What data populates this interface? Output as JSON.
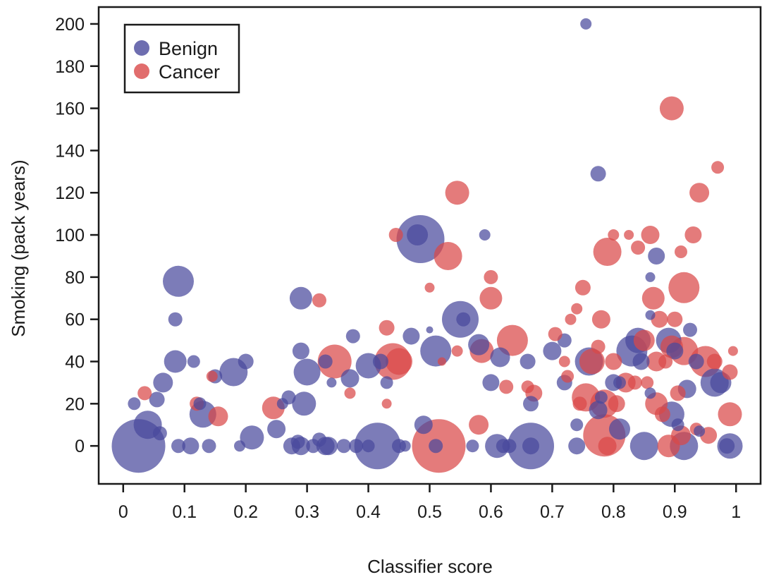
{
  "chart_data": {
    "type": "scatter",
    "title": "",
    "xlabel": "Classifier score",
    "ylabel": "Smoking (pack years)",
    "xlim": [
      -0.04,
      1.04
    ],
    "ylim": [
      -18,
      208
    ],
    "x_ticks": [
      0,
      0.1,
      0.2,
      0.3,
      0.4,
      0.5,
      0.6,
      0.7,
      0.8,
      0.9,
      1
    ],
    "y_ticks": [
      0,
      20,
      40,
      60,
      80,
      100,
      120,
      140,
      160,
      180,
      200
    ],
    "grid": false,
    "legend_position": "top-left",
    "series": [
      {
        "name": "Benign",
        "color": "#4a4a9c",
        "points": [
          {
            "x": 0.025,
            "y": 0,
            "r": 38
          },
          {
            "x": 0.04,
            "y": 10,
            "r": 20
          },
          {
            "x": 0.06,
            "y": 6,
            "r": 10
          },
          {
            "x": 0.055,
            "y": 22,
            "r": 11
          },
          {
            "x": 0.065,
            "y": 30,
            "r": 14
          },
          {
            "x": 0.018,
            "y": 20,
            "r": 9
          },
          {
            "x": 0.085,
            "y": 40,
            "r": 16
          },
          {
            "x": 0.09,
            "y": 78,
            "r": 22
          },
          {
            "x": 0.085,
            "y": 60,
            "r": 10
          },
          {
            "x": 0.09,
            "y": 0,
            "r": 10
          },
          {
            "x": 0.11,
            "y": 0,
            "r": 12
          },
          {
            "x": 0.115,
            "y": 40,
            "r": 9
          },
          {
            "x": 0.125,
            "y": 20,
            "r": 9
          },
          {
            "x": 0.13,
            "y": 15,
            "r": 19
          },
          {
            "x": 0.14,
            "y": 0,
            "r": 10
          },
          {
            "x": 0.15,
            "y": 33,
            "r": 10
          },
          {
            "x": 0.18,
            "y": 35,
            "r": 20
          },
          {
            "x": 0.19,
            "y": 0,
            "r": 8
          },
          {
            "x": 0.2,
            "y": 40,
            "r": 11
          },
          {
            "x": 0.21,
            "y": 4,
            "r": 17
          },
          {
            "x": 0.25,
            "y": 8,
            "r": 13
          },
          {
            "x": 0.27,
            "y": 23,
            "r": 10
          },
          {
            "x": 0.26,
            "y": 20,
            "r": 8
          },
          {
            "x": 0.275,
            "y": 0,
            "r": 12
          },
          {
            "x": 0.29,
            "y": 0,
            "r": 13
          },
          {
            "x": 0.285,
            "y": 2,
            "r": 10
          },
          {
            "x": 0.29,
            "y": 70,
            "r": 16
          },
          {
            "x": 0.29,
            "y": 45,
            "r": 12
          },
          {
            "x": 0.295,
            "y": 20,
            "r": 17
          },
          {
            "x": 0.3,
            "y": 35,
            "r": 19
          },
          {
            "x": 0.31,
            "y": 0,
            "r": 10
          },
          {
            "x": 0.32,
            "y": 3,
            "r": 10
          },
          {
            "x": 0.33,
            "y": 0,
            "r": 13
          },
          {
            "x": 0.335,
            "y": 0,
            "r": 13
          },
          {
            "x": 0.34,
            "y": 30,
            "r": 7
          },
          {
            "x": 0.33,
            "y": 40,
            "r": 10
          },
          {
            "x": 0.36,
            "y": 0,
            "r": 10
          },
          {
            "x": 0.37,
            "y": 32,
            "r": 13
          },
          {
            "x": 0.375,
            "y": 52,
            "r": 10
          },
          {
            "x": 0.38,
            "y": 0,
            "r": 10
          },
          {
            "x": 0.4,
            "y": 38,
            "r": 18
          },
          {
            "x": 0.415,
            "y": 0,
            "r": 33
          },
          {
            "x": 0.4,
            "y": 0,
            "r": 9
          },
          {
            "x": 0.42,
            "y": 40,
            "r": 11
          },
          {
            "x": 0.43,
            "y": 30,
            "r": 9
          },
          {
            "x": 0.45,
            "y": 0,
            "r": 10
          },
          {
            "x": 0.46,
            "y": 0,
            "r": 8
          },
          {
            "x": 0.47,
            "y": 52,
            "r": 12
          },
          {
            "x": 0.485,
            "y": 98,
            "r": 34
          },
          {
            "x": 0.48,
            "y": 100,
            "r": 15
          },
          {
            "x": 0.49,
            "y": 10,
            "r": 13
          },
          {
            "x": 0.5,
            "y": 55,
            "r": 5
          },
          {
            "x": 0.51,
            "y": 45,
            "r": 22
          },
          {
            "x": 0.51,
            "y": 0,
            "r": 10
          },
          {
            "x": 0.55,
            "y": 60,
            "r": 26
          },
          {
            "x": 0.555,
            "y": 60,
            "r": 10
          },
          {
            "x": 0.57,
            "y": 0,
            "r": 9
          },
          {
            "x": 0.58,
            "y": 48,
            "r": 15
          },
          {
            "x": 0.59,
            "y": 100,
            "r": 8
          },
          {
            "x": 0.6,
            "y": 30,
            "r": 12
          },
          {
            "x": 0.61,
            "y": 0,
            "r": 17
          },
          {
            "x": 0.615,
            "y": 42,
            "r": 14
          },
          {
            "x": 0.62,
            "y": 0,
            "r": 10
          },
          {
            "x": 0.63,
            "y": 0,
            "r": 10
          },
          {
            "x": 0.665,
            "y": 0,
            "r": 33
          },
          {
            "x": 0.66,
            "y": 40,
            "r": 11
          },
          {
            "x": 0.665,
            "y": 20,
            "r": 11
          },
          {
            "x": 0.665,
            "y": 0,
            "r": 12
          },
          {
            "x": 0.7,
            "y": 45,
            "r": 13
          },
          {
            "x": 0.72,
            "y": 30,
            "r": 11
          },
          {
            "x": 0.72,
            "y": 50,
            "r": 10
          },
          {
            "x": 0.74,
            "y": 0,
            "r": 12
          },
          {
            "x": 0.74,
            "y": 10,
            "r": 9
          },
          {
            "x": 0.755,
            "y": 200,
            "r": 8
          },
          {
            "x": 0.76,
            "y": 40,
            "r": 20
          },
          {
            "x": 0.775,
            "y": 129,
            "r": 11
          },
          {
            "x": 0.775,
            "y": 17,
            "r": 13
          },
          {
            "x": 0.78,
            "y": 23,
            "r": 9
          },
          {
            "x": 0.8,
            "y": 30,
            "r": 12
          },
          {
            "x": 0.81,
            "y": 30,
            "r": 9
          },
          {
            "x": 0.81,
            "y": 8,
            "r": 15
          },
          {
            "x": 0.83,
            "y": 45,
            "r": 22
          },
          {
            "x": 0.84,
            "y": 50,
            "r": 18
          },
          {
            "x": 0.845,
            "y": 40,
            "r": 12
          },
          {
            "x": 0.85,
            "y": 0,
            "r": 20
          },
          {
            "x": 0.86,
            "y": 80,
            "r": 7
          },
          {
            "x": 0.86,
            "y": 62,
            "r": 7
          },
          {
            "x": 0.87,
            "y": 90,
            "r": 12
          },
          {
            "x": 0.86,
            "y": 25,
            "r": 8
          },
          {
            "x": 0.89,
            "y": 50,
            "r": 18
          },
          {
            "x": 0.895,
            "y": 15,
            "r": 18
          },
          {
            "x": 0.9,
            "y": 45,
            "r": 12
          },
          {
            "x": 0.905,
            "y": 10,
            "r": 9
          },
          {
            "x": 0.915,
            "y": 0,
            "r": 20
          },
          {
            "x": 0.92,
            "y": 27,
            "r": 13
          },
          {
            "x": 0.925,
            "y": 55,
            "r": 10
          },
          {
            "x": 0.935,
            "y": 40,
            "r": 11
          },
          {
            "x": 0.94,
            "y": 7,
            "r": 8
          },
          {
            "x": 0.965,
            "y": 30,
            "r": 20
          },
          {
            "x": 0.975,
            "y": 30,
            "r": 15
          },
          {
            "x": 0.985,
            "y": 0,
            "r": 11
          },
          {
            "x": 0.99,
            "y": 0,
            "r": 18
          }
        ]
      },
      {
        "name": "Cancer",
        "color": "#d94848",
        "points": [
          {
            "x": 0.035,
            "y": 25,
            "r": 10
          },
          {
            "x": 0.12,
            "y": 20,
            "r": 10
          },
          {
            "x": 0.145,
            "y": 33,
            "r": 8
          },
          {
            "x": 0.155,
            "y": 14,
            "r": 14
          },
          {
            "x": 0.245,
            "y": 18,
            "r": 16
          },
          {
            "x": 0.32,
            "y": 69,
            "r": 10
          },
          {
            "x": 0.345,
            "y": 40,
            "r": 24
          },
          {
            "x": 0.37,
            "y": 25,
            "r": 8
          },
          {
            "x": 0.43,
            "y": 56,
            "r": 11
          },
          {
            "x": 0.43,
            "y": 20,
            "r": 7
          },
          {
            "x": 0.445,
            "y": 100,
            "r": 10
          },
          {
            "x": 0.44,
            "y": 40,
            "r": 26
          },
          {
            "x": 0.45,
            "y": 40,
            "r": 19
          },
          {
            "x": 0.5,
            "y": 75,
            "r": 7
          },
          {
            "x": 0.515,
            "y": 0,
            "r": 38
          },
          {
            "x": 0.52,
            "y": 40,
            "r": 6
          },
          {
            "x": 0.53,
            "y": 90,
            "r": 20
          },
          {
            "x": 0.545,
            "y": 120,
            "r": 17
          },
          {
            "x": 0.545,
            "y": 45,
            "r": 8
          },
          {
            "x": 0.58,
            "y": 10,
            "r": 14
          },
          {
            "x": 0.585,
            "y": 45,
            "r": 17
          },
          {
            "x": 0.6,
            "y": 70,
            "r": 16
          },
          {
            "x": 0.6,
            "y": 80,
            "r": 10
          },
          {
            "x": 0.625,
            "y": 28,
            "r": 10
          },
          {
            "x": 0.635,
            "y": 50,
            "r": 22
          },
          {
            "x": 0.66,
            "y": 28,
            "r": 9
          },
          {
            "x": 0.67,
            "y": 25,
            "r": 12
          },
          {
            "x": 0.705,
            "y": 53,
            "r": 10
          },
          {
            "x": 0.72,
            "y": 40,
            "r": 8
          },
          {
            "x": 0.725,
            "y": 33,
            "r": 9
          },
          {
            "x": 0.73,
            "y": 60,
            "r": 8
          },
          {
            "x": 0.74,
            "y": 65,
            "r": 8
          },
          {
            "x": 0.745,
            "y": 20,
            "r": 10
          },
          {
            "x": 0.75,
            "y": 75,
            "r": 11
          },
          {
            "x": 0.755,
            "y": 23,
            "r": 20
          },
          {
            "x": 0.765,
            "y": 40,
            "r": 18
          },
          {
            "x": 0.775,
            "y": 47,
            "r": 10
          },
          {
            "x": 0.78,
            "y": 60,
            "r": 13
          },
          {
            "x": 0.785,
            "y": 20,
            "r": 20
          },
          {
            "x": 0.79,
            "y": 92,
            "r": 20
          },
          {
            "x": 0.785,
            "y": 5,
            "r": 30
          },
          {
            "x": 0.79,
            "y": 0,
            "r": 13
          },
          {
            "x": 0.8,
            "y": 100,
            "r": 8
          },
          {
            "x": 0.8,
            "y": 40,
            "r": 12
          },
          {
            "x": 0.805,
            "y": 20,
            "r": 12
          },
          {
            "x": 0.82,
            "y": 30,
            "r": 14
          },
          {
            "x": 0.825,
            "y": 100,
            "r": 7
          },
          {
            "x": 0.835,
            "y": 30,
            "r": 10
          },
          {
            "x": 0.84,
            "y": 94,
            "r": 10
          },
          {
            "x": 0.85,
            "y": 50,
            "r": 15
          },
          {
            "x": 0.855,
            "y": 30,
            "r": 9
          },
          {
            "x": 0.86,
            "y": 100,
            "r": 13
          },
          {
            "x": 0.865,
            "y": 70,
            "r": 16
          },
          {
            "x": 0.87,
            "y": 40,
            "r": 14
          },
          {
            "x": 0.87,
            "y": 20,
            "r": 16
          },
          {
            "x": 0.875,
            "y": 60,
            "r": 12
          },
          {
            "x": 0.88,
            "y": 15,
            "r": 11
          },
          {
            "x": 0.885,
            "y": 40,
            "r": 10
          },
          {
            "x": 0.89,
            "y": 0,
            "r": 16
          },
          {
            "x": 0.895,
            "y": 47,
            "r": 16
          },
          {
            "x": 0.895,
            "y": 160,
            "r": 17
          },
          {
            "x": 0.9,
            "y": 60,
            "r": 11
          },
          {
            "x": 0.905,
            "y": 25,
            "r": 11
          },
          {
            "x": 0.91,
            "y": 92,
            "r": 9
          },
          {
            "x": 0.91,
            "y": 5,
            "r": 14
          },
          {
            "x": 0.915,
            "y": 75,
            "r": 22
          },
          {
            "x": 0.915,
            "y": 45,
            "r": 20
          },
          {
            "x": 0.93,
            "y": 100,
            "r": 12
          },
          {
            "x": 0.935,
            "y": 8,
            "r": 9
          },
          {
            "x": 0.94,
            "y": 120,
            "r": 14
          },
          {
            "x": 0.95,
            "y": 40,
            "r": 22
          },
          {
            "x": 0.955,
            "y": 5,
            "r": 12
          },
          {
            "x": 0.965,
            "y": 40,
            "r": 11
          },
          {
            "x": 0.97,
            "y": 132,
            "r": 9
          },
          {
            "x": 0.99,
            "y": 35,
            "r": 11
          },
          {
            "x": 0.99,
            "y": 15,
            "r": 17
          },
          {
            "x": 0.995,
            "y": 45,
            "r": 7
          }
        ]
      }
    ]
  }
}
